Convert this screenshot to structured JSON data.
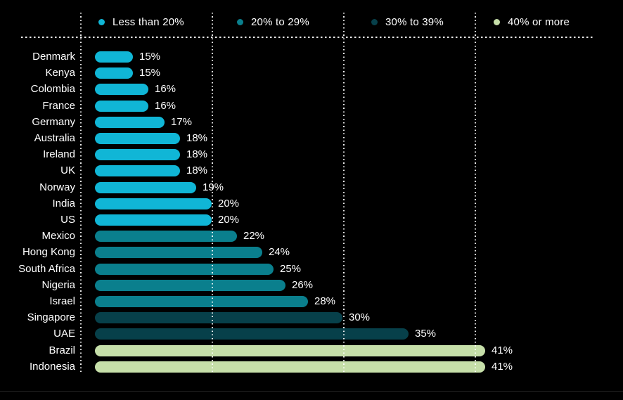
{
  "chart_data": {
    "type": "bar",
    "orientation": "horizontal",
    "title": "",
    "xlabel": "",
    "ylabel": "",
    "background_color": "#000000",
    "text_color": "#ffffff",
    "grid": "dotted",
    "legend_position": "top",
    "legend": [
      {
        "label": "Less than 20%",
        "color": "#10b6d6"
      },
      {
        "label": "20% to 29%",
        "color": "#0a7f8d"
      },
      {
        "label": "30% to 39%",
        "color": "#07404a"
      },
      {
        "label": "40% or more",
        "color": "#c6dfa9"
      }
    ],
    "axis": {
      "gridlines_percent": [
        10,
        20,
        30,
        40
      ],
      "xlim": [
        10,
        50
      ]
    },
    "rows": [
      {
        "country": "Denmark",
        "value": 15,
        "label": "15%",
        "group": 0
      },
      {
        "country": "Kenya",
        "value": 15,
        "label": "15%",
        "group": 0
      },
      {
        "country": "Colombia",
        "value": 16,
        "label": "16%",
        "group": 0
      },
      {
        "country": "France",
        "value": 16,
        "label": "16%",
        "group": 0
      },
      {
        "country": "Germany",
        "value": 17,
        "label": "17%",
        "group": 0
      },
      {
        "country": "Australia",
        "value": 18,
        "label": "18%",
        "group": 0
      },
      {
        "country": "Ireland",
        "value": 18,
        "label": "18%",
        "group": 0
      },
      {
        "country": "UK",
        "value": 18,
        "label": "18%",
        "group": 0
      },
      {
        "country": "Norway",
        "value": 19,
        "label": "19%",
        "group": 0
      },
      {
        "country": "India",
        "value": 20,
        "label": "20%",
        "group": 0
      },
      {
        "country": "US",
        "value": 20,
        "label": "20%",
        "group": 0
      },
      {
        "country": "Mexico",
        "value": 22,
        "label": "22%",
        "group": 1
      },
      {
        "country": "Hong Kong",
        "value": 24,
        "label": "24%",
        "group": 1
      },
      {
        "country": "South Africa",
        "value": 25,
        "label": "25%",
        "group": 1
      },
      {
        "country": "Nigeria",
        "value": 26,
        "label": "26%",
        "group": 1
      },
      {
        "country": "Israel",
        "value": 28,
        "label": "28%",
        "group": 1
      },
      {
        "country": "Singapore",
        "value": 30,
        "label": "30%",
        "group": 2
      },
      {
        "country": "UAE",
        "value": 35,
        "label": "35%",
        "group": 2
      },
      {
        "country": "Brazil",
        "value": 41,
        "label": "41%",
        "group": 3
      },
      {
        "country": "Indonesia",
        "value": 41,
        "label": "41%",
        "group": 3
      }
    ]
  }
}
